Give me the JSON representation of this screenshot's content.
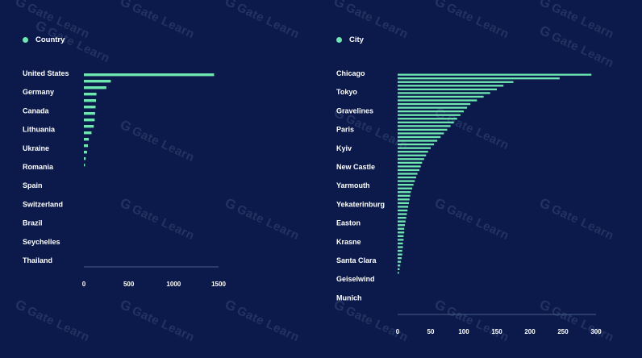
{
  "watermark_text": "Gate Learn",
  "colors": {
    "background": "#0b1a4a",
    "bar": "#6ee8b0",
    "axis": "#4a5f8a",
    "text": "#ffffff"
  },
  "chart_data": [
    {
      "type": "bar",
      "orientation": "horizontal",
      "legend": "Country",
      "legend_position": "top-left",
      "categories": [
        "United States",
        "",
        "Germany",
        "",
        "",
        "Canada",
        "",
        "",
        "Lithuania",
        "",
        "",
        "Ukraine",
        "",
        "",
        "Romania"
      ],
      "category_labels": [
        "United States",
        "Germany",
        "Canada",
        "Lithuania",
        "Ukraine",
        "Romania",
        "Spain",
        "Switzerland",
        "Brazil",
        "Seychelles",
        "Thailand"
      ],
      "values": [
        1450,
        300,
        250,
        140,
        135,
        130,
        125,
        120,
        110,
        85,
        55,
        45,
        35,
        20,
        12
      ],
      "xlim": [
        0,
        1500
      ],
      "xticks": [
        0,
        500,
        1000,
        1500
      ]
    },
    {
      "type": "bar",
      "orientation": "horizontal",
      "legend": "City",
      "legend_position": "top-left",
      "category_labels": [
        "Chicago",
        "Tokyo",
        "Gravelines",
        "Paris",
        "Kyiv",
        "New Castle",
        "Yarmouth",
        "Yekaterinburg",
        "Easton",
        "Krasne",
        "Santa Clara",
        "Geiselwind",
        "Munich"
      ],
      "values": [
        293,
        245,
        175,
        160,
        150,
        140,
        130,
        120,
        110,
        105,
        100,
        95,
        90,
        85,
        80,
        75,
        70,
        65,
        60,
        55,
        50,
        46,
        43,
        40,
        37,
        35,
        33,
        30,
        28,
        26,
        24,
        22,
        20,
        19,
        18,
        17,
        16,
        15,
        14,
        13,
        12,
        11,
        10,
        10,
        9,
        9,
        8,
        8,
        7,
        7,
        6,
        5,
        4,
        3,
        2
      ],
      "xlim": [
        0,
        300
      ],
      "xticks": [
        0,
        50,
        100,
        150,
        200,
        250,
        300
      ]
    }
  ]
}
